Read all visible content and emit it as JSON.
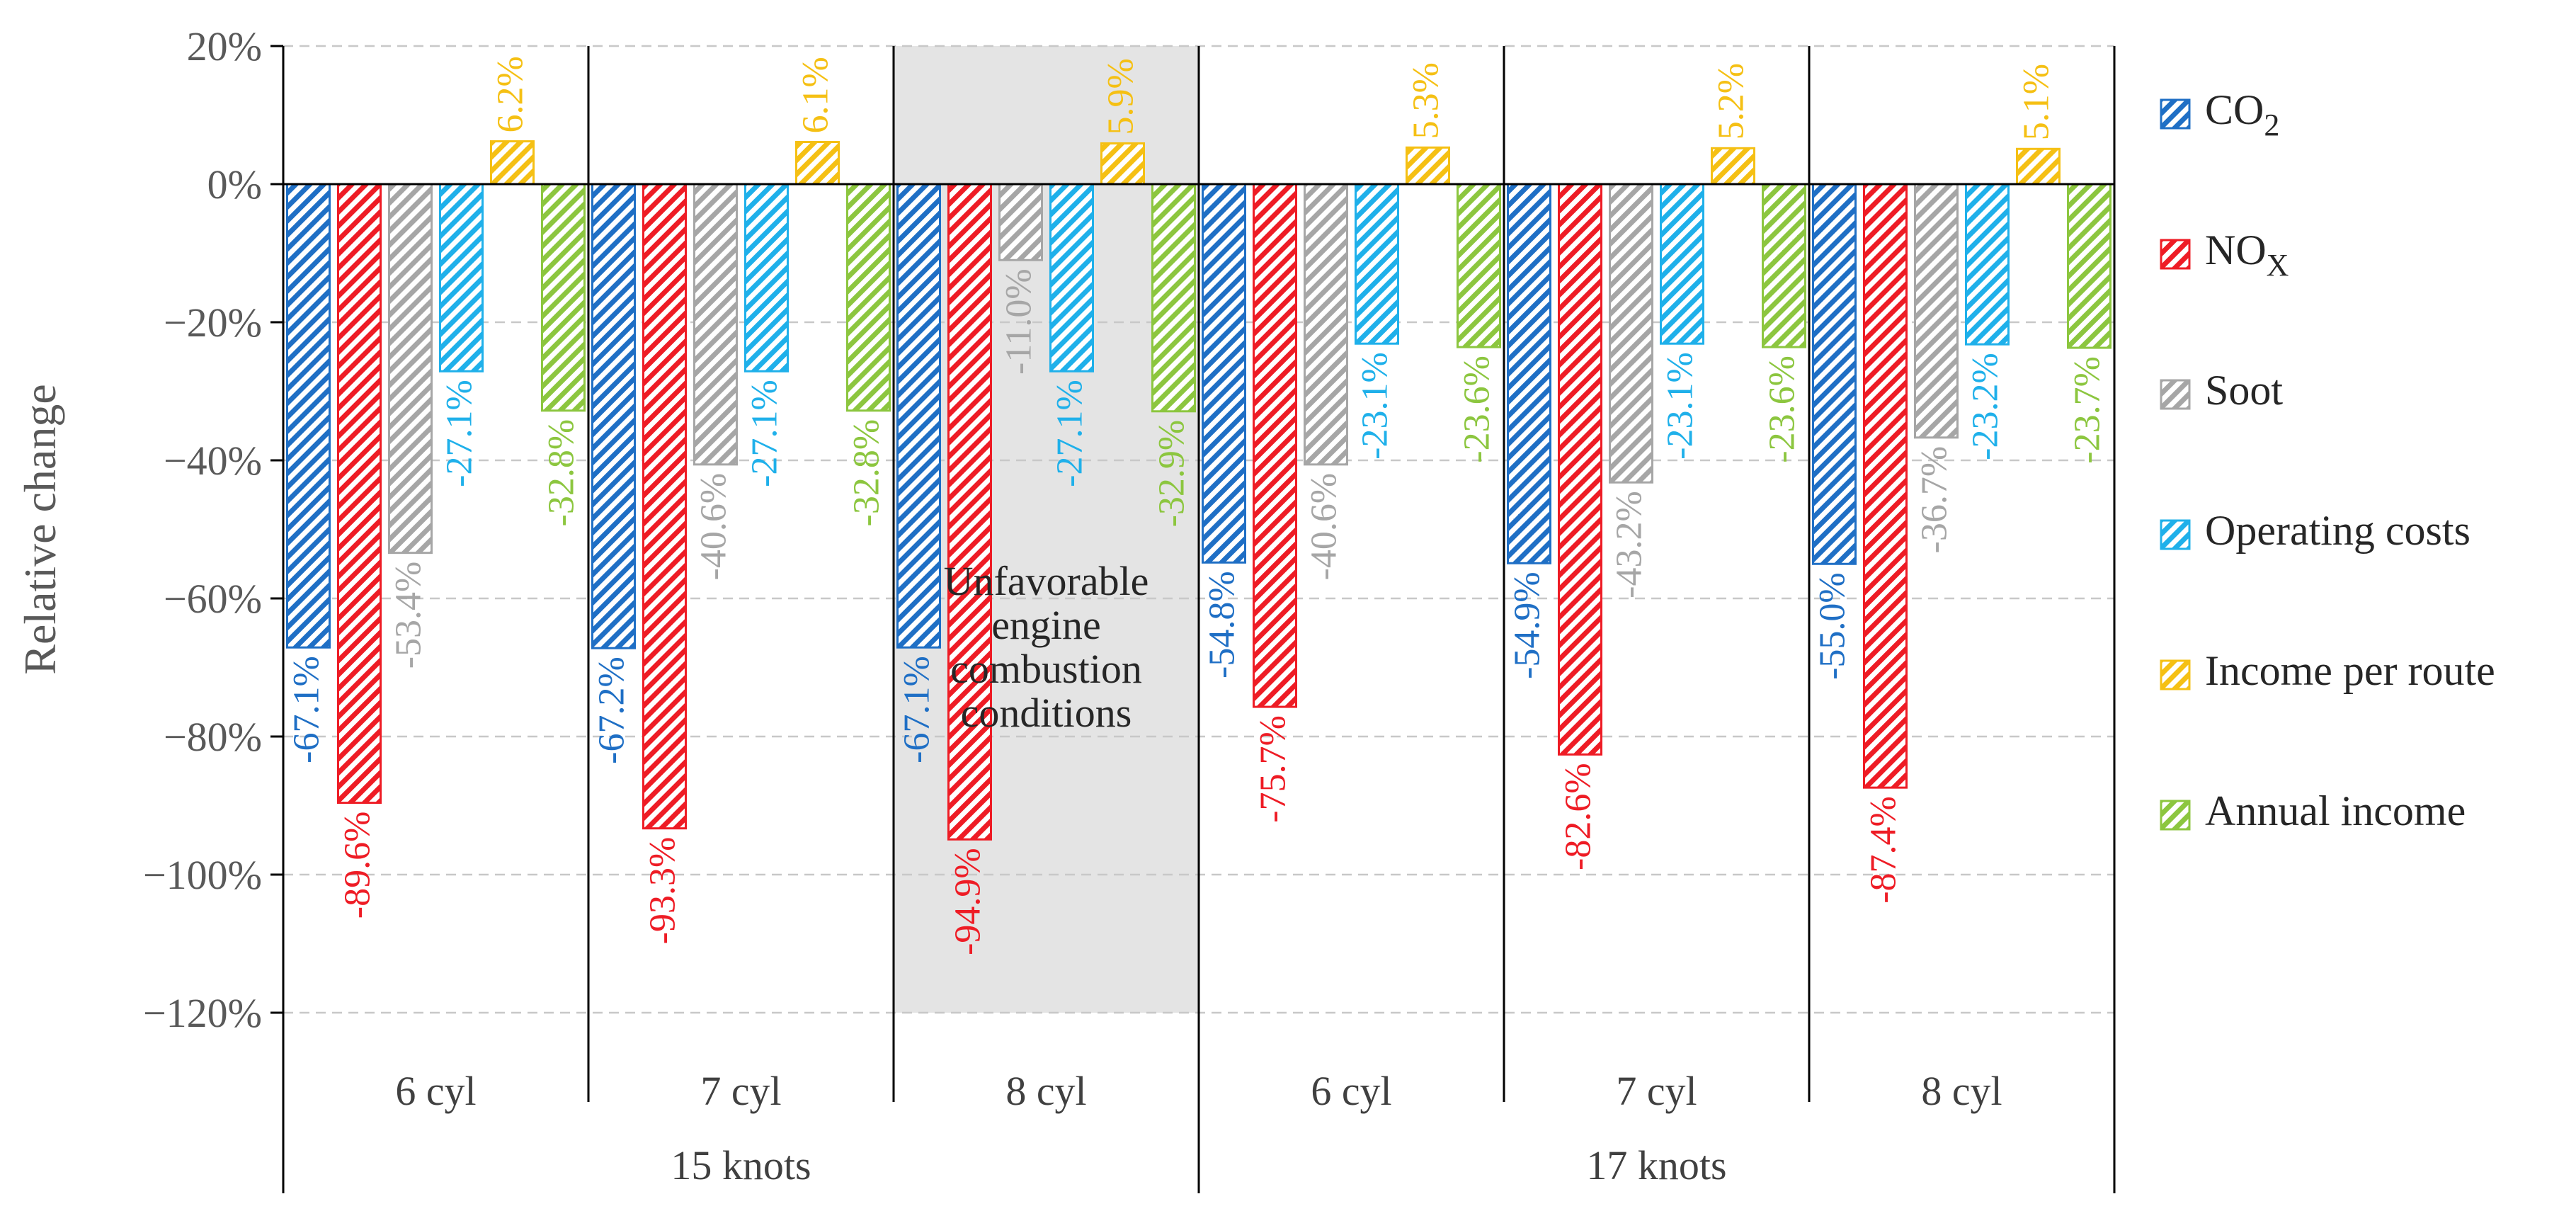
{
  "chart_data": {
    "type": "bar",
    "ylabel": "Relative change",
    "ylim": [
      -120,
      20
    ],
    "yticks": [
      20,
      0,
      -20,
      -40,
      -60,
      -80,
      -100,
      -120
    ],
    "ytick_labels": [
      "20%",
      "0%",
      "−20%",
      "−40%",
      "−60%",
      "−80%",
      "−100%",
      "−120%"
    ],
    "grid": true,
    "legend_position": "right",
    "groups": [
      {
        "label": "6 cyl",
        "speed": "15 knots"
      },
      {
        "label": "7 cyl",
        "speed": "15 knots"
      },
      {
        "label": "8 cyl",
        "speed": "15 knots"
      },
      {
        "label": "6 cyl",
        "speed": "17 knots"
      },
      {
        "label": "7 cyl",
        "speed": "17 knots"
      },
      {
        "label": "8 cyl",
        "speed": "17 knots"
      }
    ],
    "speeds": [
      "15 knots",
      "17 knots"
    ],
    "series": [
      {
        "name": "CO2",
        "legend_main": "CO",
        "legend_sub": "2",
        "color": "#1f6fc5",
        "values": [
          -67.1,
          -67.2,
          -67.1,
          -54.8,
          -54.9,
          -55.0
        ],
        "labels": [
          "-67.1%",
          "-67.2%",
          "-67.1%",
          "-54.8%",
          "-54.9%",
          "-55.0%"
        ]
      },
      {
        "name": "NOX",
        "legend_main": "NO",
        "legend_sub": "X",
        "color": "#ee1c25",
        "values": [
          -89.6,
          -93.3,
          -94.9,
          -75.7,
          -82.6,
          -87.4
        ],
        "labels": [
          "-89.6%",
          "-93.3%",
          "-94.9%",
          "-75.7%",
          "-82.6%",
          "-87.4%"
        ]
      },
      {
        "name": "Soot",
        "legend_main": "Soot",
        "legend_sub": "",
        "color": "#a6a6a6",
        "values": [
          -53.4,
          -40.6,
          -11.0,
          -40.6,
          -43.2,
          -36.7
        ],
        "labels": [
          "-53.4%",
          "-40.6%",
          "-11.0%",
          "-40.6%",
          "-43.2%",
          "-36.7%"
        ]
      },
      {
        "name": "Operating costs",
        "legend_main": "Operating costs",
        "legend_sub": "",
        "color": "#1fb0ea",
        "values": [
          -27.1,
          -27.1,
          -27.1,
          -23.1,
          -23.1,
          -23.2
        ],
        "labels": [
          "-27.1%",
          "-27.1%",
          "-27.1%",
          "-23.1%",
          "-23.1%",
          "-23.2%"
        ]
      },
      {
        "name": "Income per route",
        "legend_main": "Income per route",
        "legend_sub": "",
        "color": "#f5c014",
        "values": [
          6.2,
          6.1,
          5.9,
          5.3,
          5.2,
          5.1
        ],
        "labels": [
          "6.2%",
          "6.1%",
          "5.9%",
          "5.3%",
          "5.2%",
          "5.1%"
        ]
      },
      {
        "name": "Annual income",
        "legend_main": "Annual income",
        "legend_sub": "",
        "color": "#8cc63f",
        "values": [
          -32.8,
          -32.8,
          -32.9,
          -23.6,
          -23.6,
          -23.7
        ],
        "labels": [
          "-32.8%",
          "-32.8%",
          "-32.9%",
          "-23.6%",
          "-23.6%",
          "-23.7%"
        ]
      }
    ],
    "annotation": {
      "group_index": 2,
      "lines": [
        "Unfavorable",
        "engine",
        "combustion",
        "conditions"
      ]
    }
  }
}
